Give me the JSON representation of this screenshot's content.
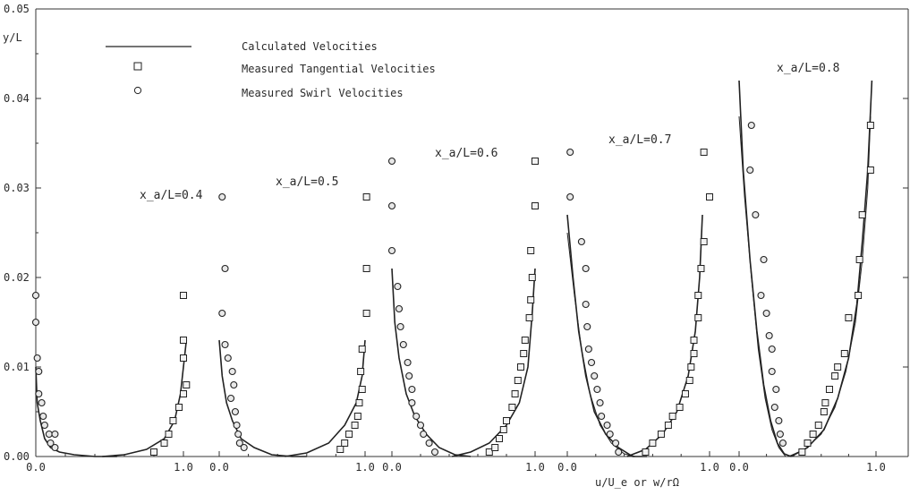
{
  "chart_data": {
    "type": "scatter",
    "title": "",
    "ylabel": "y/L",
    "xlabel": "u/U_e or w/rΩ",
    "ylim": [
      0,
      0.05
    ],
    "yticks": [
      "0.00",
      "0.01",
      "0.02",
      "0.03",
      "0.04",
      "0.05"
    ],
    "grid": false,
    "legend_position": "top-left",
    "legend": {
      "line": "Calculated Velocities",
      "squares": "Measured Tangential Velocities",
      "circles": "Measured Swirl Velocities"
    },
    "panels": [
      {
        "station": "x_a/L=0.4",
        "x_ticks": [
          "0.0",
          "1.0"
        ],
        "swirl_curve": [
          [
            0.0,
            0.01
          ],
          [
            0.01,
            0.006
          ],
          [
            0.03,
            0.004
          ],
          [
            0.06,
            0.002
          ],
          [
            0.1,
            0.001
          ],
          [
            0.16,
            0.0005
          ],
          [
            0.26,
            0.0002
          ],
          [
            0.4,
            0.0
          ],
          [
            0.55,
            0.0
          ]
        ],
        "tangential_curve": [
          [
            0.45,
            0.0
          ],
          [
            0.6,
            0.0002
          ],
          [
            0.75,
            0.0008
          ],
          [
            0.87,
            0.002
          ],
          [
            0.94,
            0.004
          ],
          [
            0.98,
            0.007
          ],
          [
            1.02,
            0.013
          ]
        ],
        "swirl_points": [
          [
            0.0,
            0.018
          ],
          [
            0.0,
            0.015
          ],
          [
            0.01,
            0.011
          ],
          [
            0.02,
            0.0095
          ],
          [
            0.02,
            0.007
          ],
          [
            0.04,
            0.006
          ],
          [
            0.05,
            0.0045
          ],
          [
            0.06,
            0.0035
          ],
          [
            0.09,
            0.0025
          ],
          [
            0.1,
            0.0015
          ],
          [
            0.13,
            0.0025
          ],
          [
            0.13,
            0.001
          ]
        ],
        "tangential_points": [
          [
            0.8,
            0.0005
          ],
          [
            0.87,
            0.0015
          ],
          [
            0.9,
            0.0025
          ],
          [
            0.93,
            0.004
          ],
          [
            0.97,
            0.0055
          ],
          [
            1.0,
            0.007
          ],
          [
            1.02,
            0.008
          ],
          [
            1.0,
            0.011
          ],
          [
            1.0,
            0.013
          ],
          [
            1.0,
            0.018
          ]
        ]
      },
      {
        "station": "x_a/L=0.5",
        "x_ticks": [
          "0.0",
          "1.0"
        ],
        "swirl_curve": [
          [
            0.0,
            0.013
          ],
          [
            0.02,
            0.009
          ],
          [
            0.05,
            0.006
          ],
          [
            0.09,
            0.004
          ],
          [
            0.15,
            0.002
          ],
          [
            0.24,
            0.001
          ],
          [
            0.36,
            0.0002
          ],
          [
            0.5,
            0.0
          ],
          [
            0.6,
            0.0
          ]
        ],
        "tangential_curve": [
          [
            0.45,
            0.0
          ],
          [
            0.6,
            0.0004
          ],
          [
            0.75,
            0.0015
          ],
          [
            0.86,
            0.0035
          ],
          [
            0.94,
            0.006
          ],
          [
            0.98,
            0.009
          ],
          [
            1.0,
            0.013
          ]
        ],
        "swirl_points": [
          [
            0.02,
            0.029
          ],
          [
            0.04,
            0.021
          ],
          [
            0.02,
            0.016
          ],
          [
            0.04,
            0.0125
          ],
          [
            0.06,
            0.011
          ],
          [
            0.09,
            0.0095
          ],
          [
            0.1,
            0.008
          ],
          [
            0.08,
            0.0065
          ],
          [
            0.11,
            0.005
          ],
          [
            0.12,
            0.0035
          ],
          [
            0.13,
            0.0025
          ],
          [
            0.14,
            0.0015
          ],
          [
            0.17,
            0.001
          ]
        ],
        "tangential_points": [
          [
            0.83,
            0.0008
          ],
          [
            0.86,
            0.0015
          ],
          [
            0.89,
            0.0025
          ],
          [
            0.93,
            0.0035
          ],
          [
            0.95,
            0.0045
          ],
          [
            0.96,
            0.006
          ],
          [
            0.98,
            0.0075
          ],
          [
            0.97,
            0.0095
          ],
          [
            0.98,
            0.012
          ],
          [
            1.01,
            0.016
          ],
          [
            1.01,
            0.021
          ],
          [
            1.01,
            0.029
          ]
        ]
      },
      {
        "station": "x_a/L=0.6",
        "x_ticks": [
          "0.0",
          "1.0"
        ],
        "swirl_curve": [
          [
            0.0,
            0.021
          ],
          [
            0.02,
            0.015
          ],
          [
            0.05,
            0.011
          ],
          [
            0.1,
            0.007
          ],
          [
            0.16,
            0.0045
          ],
          [
            0.24,
            0.0025
          ],
          [
            0.33,
            0.001
          ],
          [
            0.44,
            0.0002
          ],
          [
            0.55,
            0.0
          ]
        ],
        "tangential_curve": [
          [
            0.42,
            0.0
          ],
          [
            0.55,
            0.0005
          ],
          [
            0.68,
            0.0015
          ],
          [
            0.8,
            0.0035
          ],
          [
            0.89,
            0.006
          ],
          [
            0.95,
            0.01
          ],
          [
            0.98,
            0.016
          ],
          [
            1.0,
            0.021
          ]
        ],
        "swirl_points": [
          [
            0.0,
            0.033
          ],
          [
            0.0,
            0.028
          ],
          [
            0.0,
            0.023
          ],
          [
            0.04,
            0.019
          ],
          [
            0.05,
            0.0165
          ],
          [
            0.06,
            0.0145
          ],
          [
            0.08,
            0.0125
          ],
          [
            0.11,
            0.0105
          ],
          [
            0.12,
            0.009
          ],
          [
            0.14,
            0.0075
          ],
          [
            0.14,
            0.006
          ],
          [
            0.17,
            0.0045
          ],
          [
            0.2,
            0.0035
          ],
          [
            0.22,
            0.0025
          ],
          [
            0.26,
            0.0015
          ],
          [
            0.3,
            0.0005
          ]
        ],
        "tangential_points": [
          [
            0.68,
            0.0005
          ],
          [
            0.72,
            0.001
          ],
          [
            0.75,
            0.002
          ],
          [
            0.78,
            0.003
          ],
          [
            0.8,
            0.004
          ],
          [
            0.84,
            0.0055
          ],
          [
            0.86,
            0.007
          ],
          [
            0.88,
            0.0085
          ],
          [
            0.9,
            0.01
          ],
          [
            0.92,
            0.0115
          ],
          [
            0.93,
            0.013
          ],
          [
            0.96,
            0.0155
          ],
          [
            0.97,
            0.0175
          ],
          [
            0.98,
            0.02
          ],
          [
            0.97,
            0.023
          ],
          [
            1.0,
            0.028
          ],
          [
            1.0,
            0.033
          ]
        ]
      },
      {
        "station": "x_a/L=0.7",
        "x_ticks": [
          "0.0",
          "1.0"
        ],
        "swirl_curve": [
          [
            0.0,
            0.027
          ],
          [
            0.04,
            0.02
          ],
          [
            0.08,
            0.014
          ],
          [
            0.13,
            0.009
          ],
          [
            0.19,
            0.005
          ],
          [
            0.27,
            0.0025
          ],
          [
            0.36,
            0.001
          ],
          [
            0.46,
            0.0
          ],
          [
            0.56,
            0.0
          ]
        ],
        "swirl_curve_2": [
          [
            0.0,
            0.025
          ],
          [
            0.05,
            0.018
          ],
          [
            0.1,
            0.012
          ],
          [
            0.16,
            0.007
          ],
          [
            0.23,
            0.0035
          ],
          [
            0.31,
            0.0015
          ],
          [
            0.4,
            0.0003
          ],
          [
            0.48,
            0.0
          ]
        ],
        "tangential_curve": [
          [
            0.42,
            0.0
          ],
          [
            0.55,
            0.0008
          ],
          [
            0.67,
            0.0025
          ],
          [
            0.77,
            0.005
          ],
          [
            0.85,
            0.009
          ],
          [
            0.9,
            0.014
          ],
          [
            0.93,
            0.02
          ],
          [
            0.95,
            0.027
          ]
        ],
        "swirl_points": [
          [
            0.02,
            0.034
          ],
          [
            0.02,
            0.029
          ],
          [
            0.1,
            0.024
          ],
          [
            0.13,
            0.021
          ],
          [
            0.13,
            0.017
          ],
          [
            0.14,
            0.0145
          ],
          [
            0.15,
            0.012
          ],
          [
            0.17,
            0.0105
          ],
          [
            0.19,
            0.009
          ],
          [
            0.21,
            0.0075
          ],
          [
            0.23,
            0.006
          ],
          [
            0.24,
            0.0045
          ],
          [
            0.28,
            0.0035
          ],
          [
            0.3,
            0.0025
          ],
          [
            0.34,
            0.0015
          ],
          [
            0.36,
            0.0005
          ]
        ],
        "tangential_points": [
          [
            0.55,
            0.0005
          ],
          [
            0.6,
            0.0015
          ],
          [
            0.66,
            0.0025
          ],
          [
            0.71,
            0.0035
          ],
          [
            0.74,
            0.0045
          ],
          [
            0.79,
            0.0055
          ],
          [
            0.83,
            0.007
          ],
          [
            0.86,
            0.0085
          ],
          [
            0.87,
            0.01
          ],
          [
            0.89,
            0.0115
          ],
          [
            0.89,
            0.013
          ],
          [
            0.92,
            0.0155
          ],
          [
            0.92,
            0.018
          ],
          [
            0.94,
            0.021
          ],
          [
            0.96,
            0.024
          ],
          [
            1.0,
            0.029
          ],
          [
            0.96,
            0.034
          ]
        ]
      },
      {
        "station": "x_a/L=0.8",
        "x_ticks": [
          "0.0",
          "1.0"
        ],
        "swirl_curve": [
          [
            0.0,
            0.042
          ],
          [
            0.03,
            0.032
          ],
          [
            0.08,
            0.022
          ],
          [
            0.13,
            0.014
          ],
          [
            0.18,
            0.008
          ],
          [
            0.23,
            0.004
          ],
          [
            0.28,
            0.0015
          ],
          [
            0.33,
            0.0003
          ],
          [
            0.38,
            0.0
          ]
        ],
        "swirl_curve_2": [
          [
            0.0,
            0.038
          ],
          [
            0.04,
            0.029
          ],
          [
            0.09,
            0.02
          ],
          [
            0.14,
            0.012
          ],
          [
            0.19,
            0.0065
          ],
          [
            0.24,
            0.003
          ],
          [
            0.29,
            0.001
          ],
          [
            0.34,
            0.0
          ]
        ],
        "tangential_curve": [
          [
            0.38,
            0.0
          ],
          [
            0.5,
            0.001
          ],
          [
            0.62,
            0.003
          ],
          [
            0.72,
            0.0065
          ],
          [
            0.8,
            0.011
          ],
          [
            0.86,
            0.017
          ],
          [
            0.9,
            0.024
          ],
          [
            0.94,
            0.032
          ],
          [
            0.97,
            0.042
          ]
        ],
        "tangential_curve_2": [
          [
            0.36,
            0.0
          ],
          [
            0.48,
            0.0008
          ],
          [
            0.6,
            0.0025
          ],
          [
            0.7,
            0.0055
          ],
          [
            0.78,
            0.0095
          ],
          [
            0.85,
            0.015
          ],
          [
            0.9,
            0.022
          ],
          [
            0.94,
            0.03
          ],
          [
            0.96,
            0.038
          ]
        ],
        "swirl_points": [
          [
            0.09,
            0.037
          ],
          [
            0.08,
            0.032
          ],
          [
            0.12,
            0.027
          ],
          [
            0.18,
            0.022
          ],
          [
            0.16,
            0.018
          ],
          [
            0.2,
            0.016
          ],
          [
            0.22,
            0.0135
          ],
          [
            0.24,
            0.012
          ],
          [
            0.24,
            0.0095
          ],
          [
            0.27,
            0.0075
          ],
          [
            0.26,
            0.0055
          ],
          [
            0.29,
            0.004
          ],
          [
            0.3,
            0.0025
          ],
          [
            0.32,
            0.0015
          ]
        ],
        "tangential_points": [
          [
            0.46,
            0.0005
          ],
          [
            0.5,
            0.0015
          ],
          [
            0.54,
            0.0025
          ],
          [
            0.58,
            0.0035
          ],
          [
            0.62,
            0.005
          ],
          [
            0.63,
            0.006
          ],
          [
            0.66,
            0.0075
          ],
          [
            0.7,
            0.009
          ],
          [
            0.72,
            0.01
          ],
          [
            0.77,
            0.0115
          ],
          [
            0.8,
            0.0155
          ],
          [
            0.87,
            0.018
          ],
          [
            0.88,
            0.022
          ],
          [
            0.9,
            0.027
          ],
          [
            0.96,
            0.032
          ],
          [
            0.96,
            0.037
          ]
        ]
      }
    ]
  }
}
